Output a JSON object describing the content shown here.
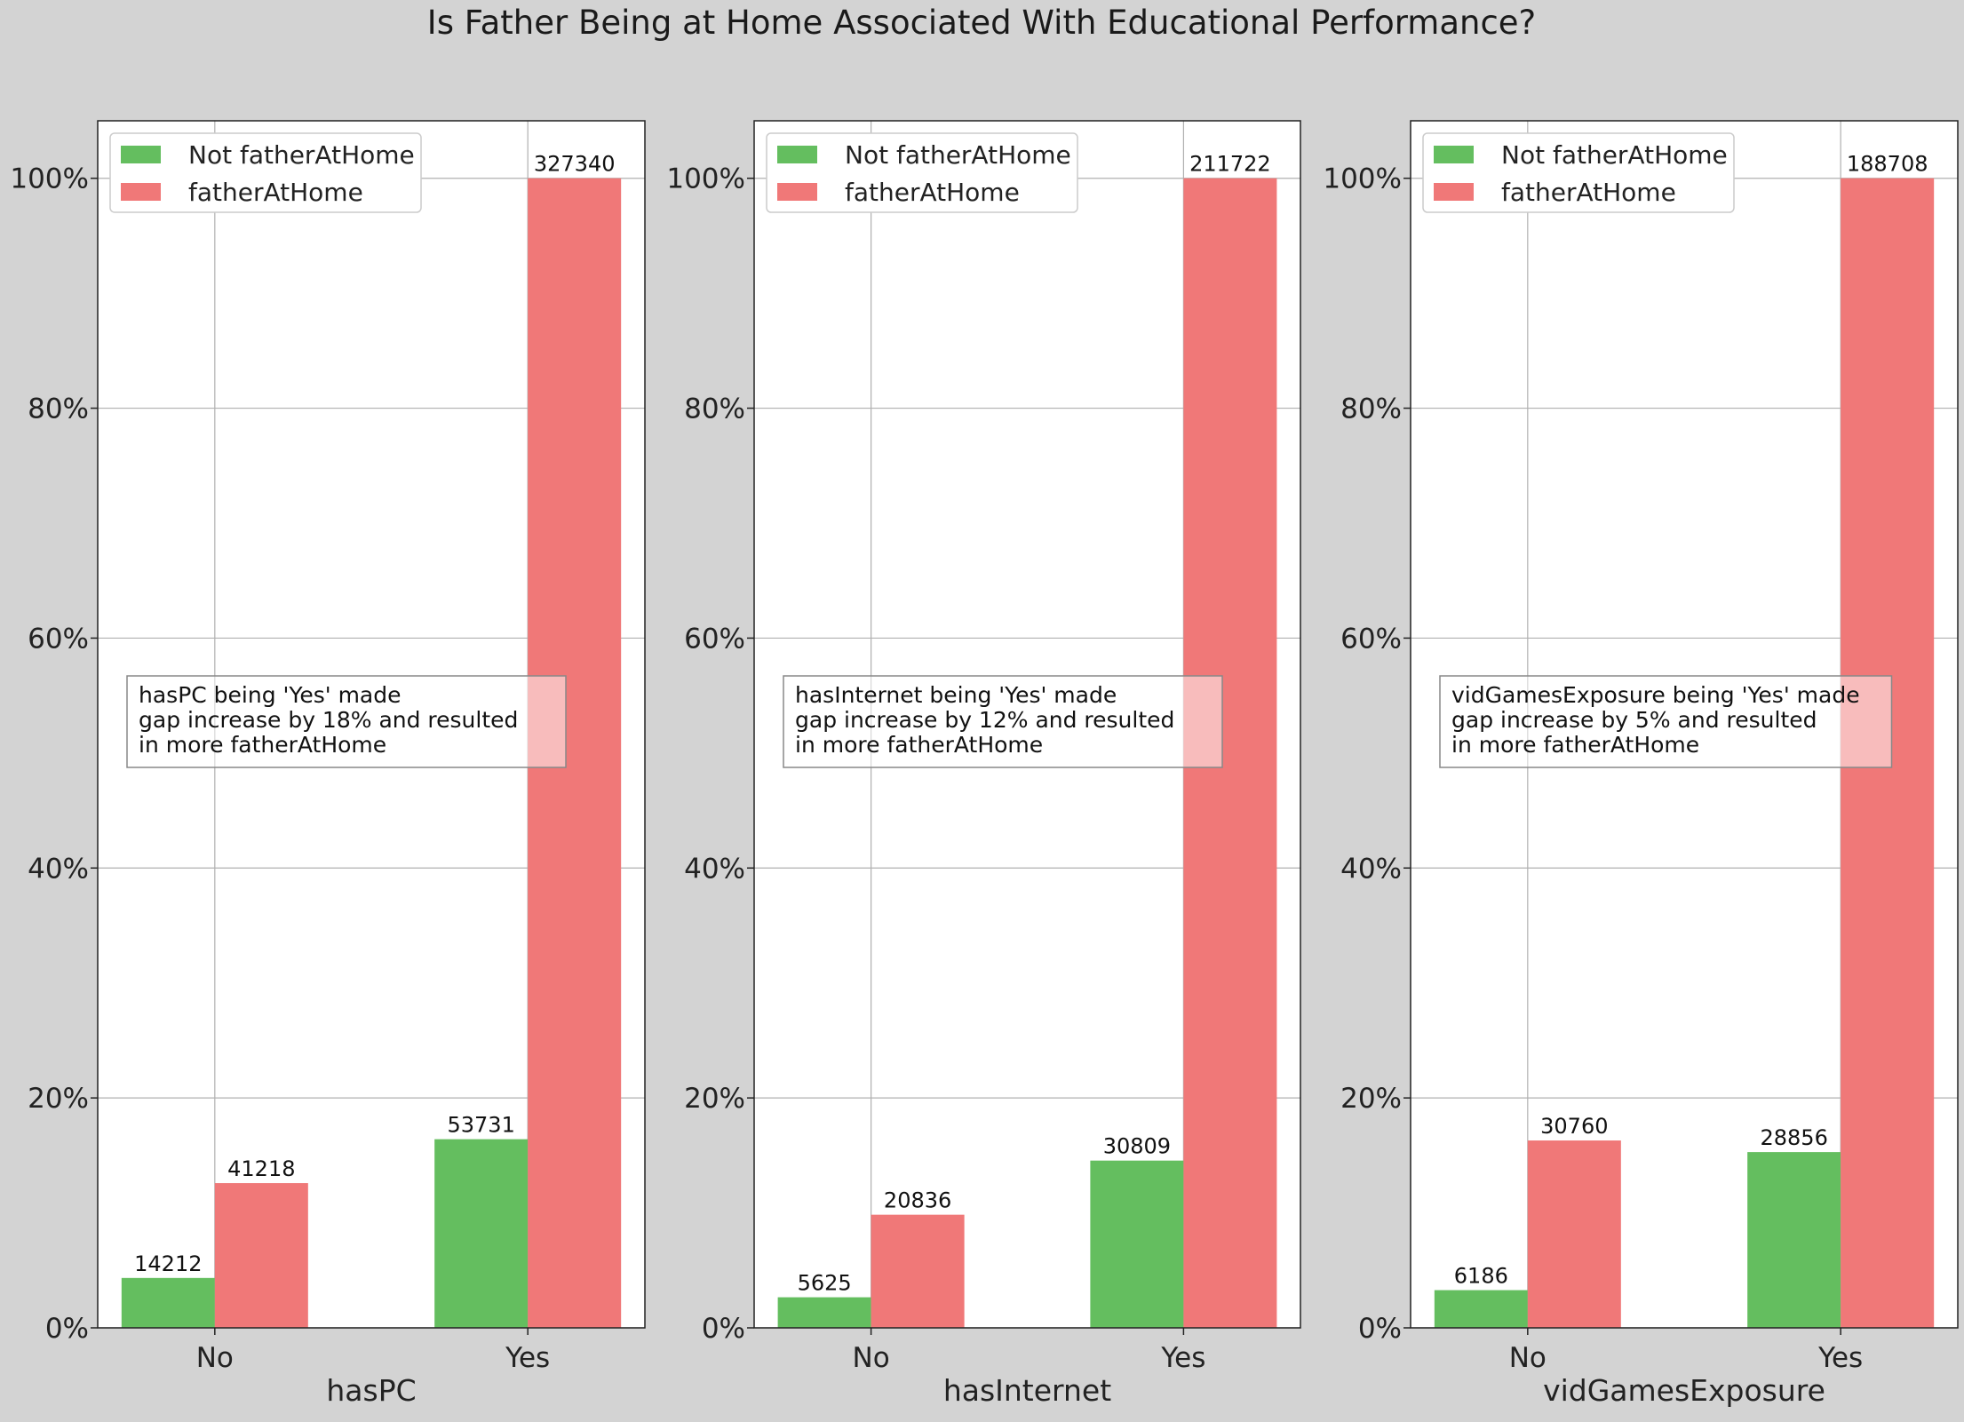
{
  "title": "Is Father Being at Home Associated With Educational Performance?",
  "colors": {
    "figure_bg": "#d3d3d3",
    "plot_bg": "#ffffff",
    "not_father": "#64be5f",
    "father": "#f07878",
    "grid": "#b0b0b0"
  },
  "chart_data": [
    {
      "type": "bar",
      "xlabel": "hasPC",
      "categories": [
        "No",
        "Yes"
      ],
      "ylim": [
        0,
        1.05
      ],
      "yticks": [
        0,
        0.2,
        0.4,
        0.6,
        0.8,
        1.0
      ],
      "ytick_labels": [
        "0%",
        "20%",
        "40%",
        "60%",
        "80%",
        "100%"
      ],
      "grid": true,
      "legend": "top-left",
      "series": [
        {
          "name": "Not fatherAtHome",
          "values": [
            0.0434,
            0.1641
          ],
          "labels": [
            "14212",
            "53731"
          ]
        },
        {
          "name": "fatherAtHome",
          "values": [
            0.1259,
            1.0
          ],
          "labels": [
            "41218",
            "327340"
          ]
        }
      ],
      "annotation": [
        "hasPC being 'Yes' made",
        "gap increase by 18% and resulted",
        "in more fatherAtHome"
      ]
    },
    {
      "type": "bar",
      "xlabel": "hasInternet",
      "categories": [
        "No",
        "Yes"
      ],
      "ylim": [
        0,
        1.05
      ],
      "yticks": [
        0,
        0.2,
        0.4,
        0.6,
        0.8,
        1.0
      ],
      "ytick_labels": [
        "0%",
        "20%",
        "40%",
        "60%",
        "80%",
        "100%"
      ],
      "grid": true,
      "legend": "top-left",
      "series": [
        {
          "name": "Not fatherAtHome",
          "values": [
            0.0266,
            0.1455
          ],
          "labels": [
            "5625",
            "30809"
          ]
        },
        {
          "name": "fatherAtHome",
          "values": [
            0.0984,
            1.0
          ],
          "labels": [
            "20836",
            "211722"
          ]
        }
      ],
      "annotation": [
        "hasInternet being 'Yes' made",
        "gap increase by 12% and resulted",
        "in more fatherAtHome"
      ]
    },
    {
      "type": "bar",
      "xlabel": "vidGamesExposure",
      "categories": [
        "No",
        "Yes"
      ],
      "ylim": [
        0,
        1.05
      ],
      "yticks": [
        0,
        0.2,
        0.4,
        0.6,
        0.8,
        1.0
      ],
      "ytick_labels": [
        "0%",
        "20%",
        "40%",
        "60%",
        "80%",
        "100%"
      ],
      "grid": true,
      "legend": "top-left",
      "series": [
        {
          "name": "Not fatherAtHome",
          "values": [
            0.0328,
            0.1529
          ],
          "labels": [
            "6186",
            "28856"
          ]
        },
        {
          "name": "fatherAtHome",
          "values": [
            0.163,
            1.0
          ],
          "labels": [
            "30760",
            "188708"
          ]
        }
      ],
      "annotation": [
        "vidGamesExposure being 'Yes' made",
        "gap increase by 5% and resulted",
        "in more fatherAtHome"
      ]
    }
  ]
}
